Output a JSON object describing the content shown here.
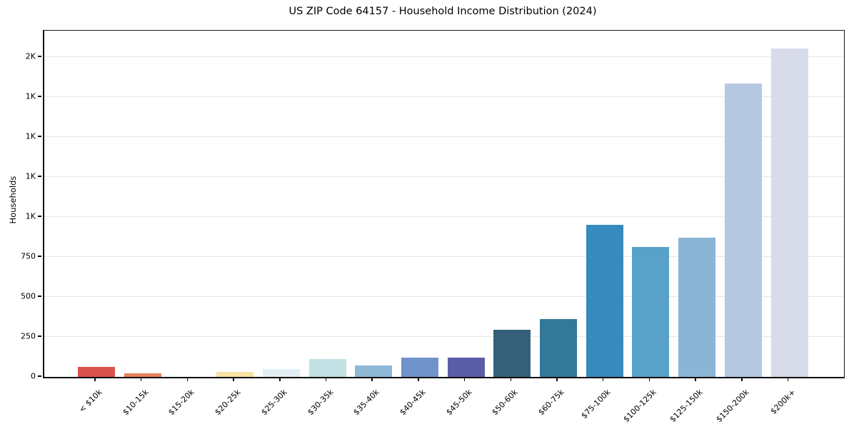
{
  "chart_data": {
    "type": "bar",
    "title": "US ZIP Code 64157 - Household Income Distribution (2024)",
    "xlabel": "",
    "ylabel": "Households",
    "categories": [
      "< $10k",
      "$10-15k",
      "$15-20k",
      "$20-25k",
      "$25-30k",
      "$30-35k",
      "$35-40k",
      "$40-45k",
      "$45-50k",
      "$50-60k",
      "$60-75k",
      "$75-100k",
      "$100-125k",
      "$125-150k",
      "$150-200k",
      "$200k+"
    ],
    "values": [
      62,
      22,
      0,
      31,
      48,
      112,
      71,
      120,
      122,
      294,
      362,
      950,
      812,
      872,
      1835,
      2052
    ],
    "bar_colors": [
      "#d9544e",
      "#e5825b",
      "#f2c57e",
      "#f9e2a2",
      "#e1eff5",
      "#c3e1e5",
      "#8fb8d7",
      "#7193cb",
      "#5b5ca8",
      "#34607a",
      "#347899",
      "#368bbc",
      "#58a1c8",
      "#8ab5d5",
      "#b5c8e1",
      "#d8dbe9"
    ],
    "ylim": [
      0,
      2165
    ],
    "yticks": [
      {
        "value": 0,
        "label": "0"
      },
      {
        "value": 250,
        "label": "250"
      },
      {
        "value": 500,
        "label": "500"
      },
      {
        "value": 750,
        "label": "750"
      },
      {
        "value": 1000,
        "label": "1K"
      },
      {
        "value": 1250,
        "label": "1K"
      },
      {
        "value": 1500,
        "label": "1K"
      },
      {
        "value": 1750,
        "label": "1K"
      },
      {
        "value": 2000,
        "label": "2K"
      }
    ],
    "grid": true,
    "gridline_color": "#e7e7e7",
    "legend_position": "none"
  }
}
